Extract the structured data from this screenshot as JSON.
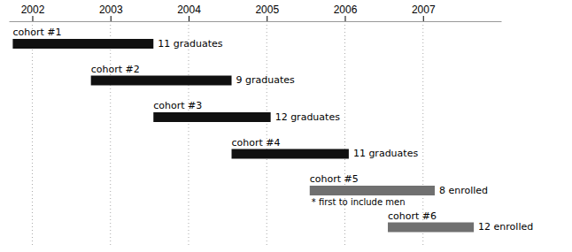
{
  "chart_data": {
    "type": "timeline",
    "orientation": "horizontal",
    "categories": [
      "cohort #1",
      "cohort #2",
      "cohort #3",
      "cohort #4",
      "cohort #5",
      "cohort #6"
    ],
    "start": [
      2001.75,
      2002.75,
      2003.55,
      2004.55,
      2005.55,
      2006.55
    ],
    "values": [
      2003.55,
      2004.55,
      2005.05,
      2006.05,
      2007.15,
      2007.65
    ],
    "annotations": [
      "11 graduates",
      "9 graduates",
      "12 graduates",
      "11 graduates",
      "8 enrolled",
      "12 enrolled"
    ],
    "notes": [
      null,
      null,
      null,
      null,
      "* first to include men",
      null
    ],
    "colors": [
      "#101010",
      "#101010",
      "#101010",
      "#101010",
      "#707070",
      "#707070"
    ],
    "xlim": [
      2001.7,
      2008.0
    ],
    "xticks": [
      2002,
      2003,
      2004,
      2005,
      2006,
      2007
    ],
    "grid": true,
    "tick_labels": "x"
  }
}
